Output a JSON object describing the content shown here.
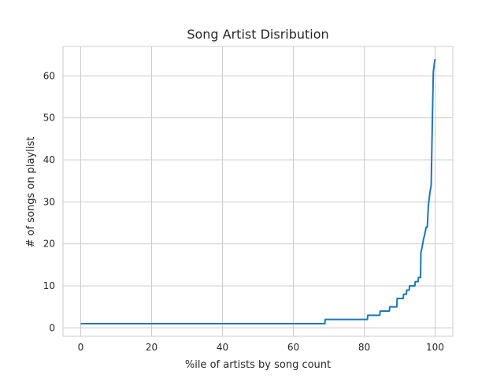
{
  "chart_data": {
    "type": "line",
    "title": "Song Artist Disribution",
    "xlabel": "%ile of artists by song count",
    "ylabel": "# of songs on playlist",
    "xlim": [
      -5,
      105
    ],
    "ylim": [
      -2,
      67
    ],
    "xticks": [
      0,
      20,
      40,
      60,
      80,
      100
    ],
    "yticks": [
      0,
      10,
      20,
      30,
      40,
      50,
      60
    ],
    "grid": true,
    "series": [
      {
        "x": [
          0,
          68.9,
          69,
          80.9,
          81,
          84.4,
          84.5,
          87.1,
          87.2,
          89.2,
          89.3,
          91.0,
          91.1,
          91.9,
          92.0,
          92.7,
          92.8,
          94.3,
          94.4,
          95.2,
          95.3,
          95.9,
          96.0,
          96.3,
          96.7,
          97.0,
          97.5,
          97.8,
          98.1,
          98.5,
          98.9,
          99.2,
          99.5,
          99.8,
          100
        ],
        "y": [
          1,
          1,
          2,
          2,
          3,
          3,
          4,
          4,
          5,
          5,
          7,
          7,
          8,
          8,
          9,
          9,
          10,
          10,
          11,
          11,
          12,
          12,
          18,
          19,
          21,
          22,
          24,
          24,
          29,
          32,
          34,
          48,
          61,
          63,
          64
        ]
      }
    ]
  }
}
